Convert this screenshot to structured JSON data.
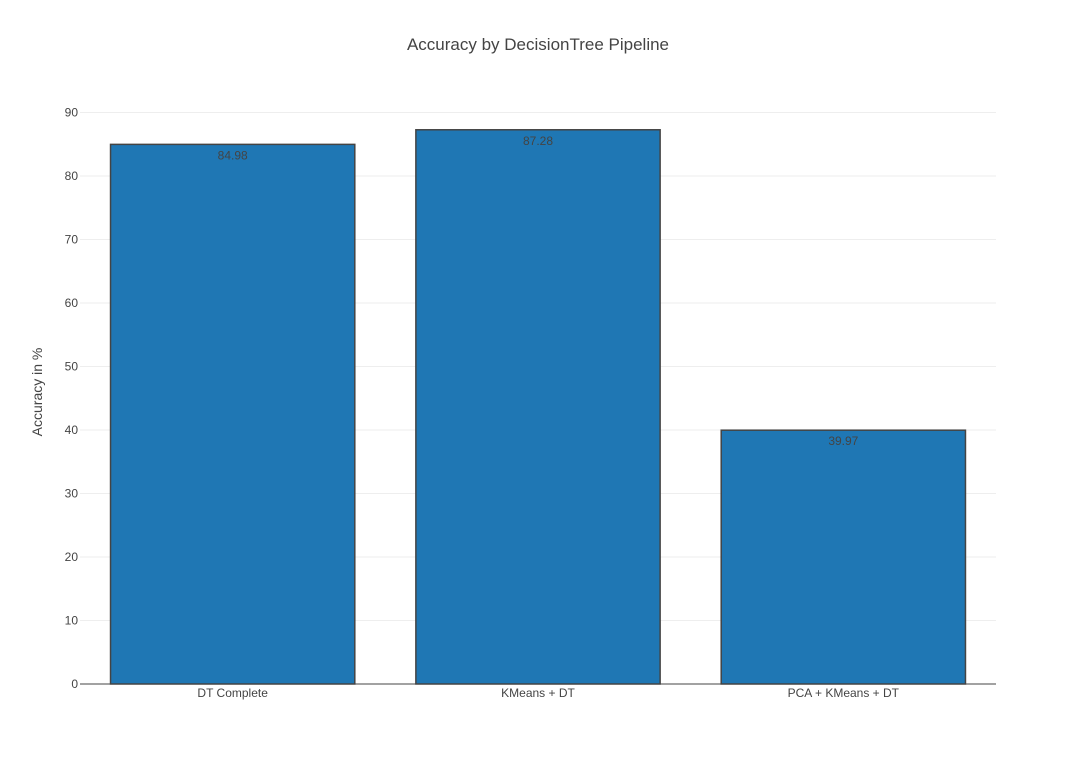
{
  "chart_data": {
    "type": "bar",
    "title": "Accuracy by DecisionTree Pipeline",
    "xlabel": "",
    "ylabel": "Accuracy in %",
    "categories": [
      "DT Complete",
      "KMeans + DT",
      "PCA + KMeans + DT"
    ],
    "values": [
      84.98,
      87.28,
      39.97
    ],
    "value_labels": [
      "84.98",
      "87.28",
      "39.97"
    ],
    "ylim": [
      0,
      90
    ],
    "yticks": [
      0,
      10,
      20,
      30,
      40,
      50,
      60,
      70,
      80,
      90
    ],
    "ytick_labels": [
      "0",
      "10",
      "20",
      "30",
      "40",
      "50",
      "60",
      "70",
      "80",
      "90"
    ],
    "grid": true,
    "legend": "none",
    "bar_color": "#1f77b4",
    "bar_outline_color": "#444444"
  }
}
